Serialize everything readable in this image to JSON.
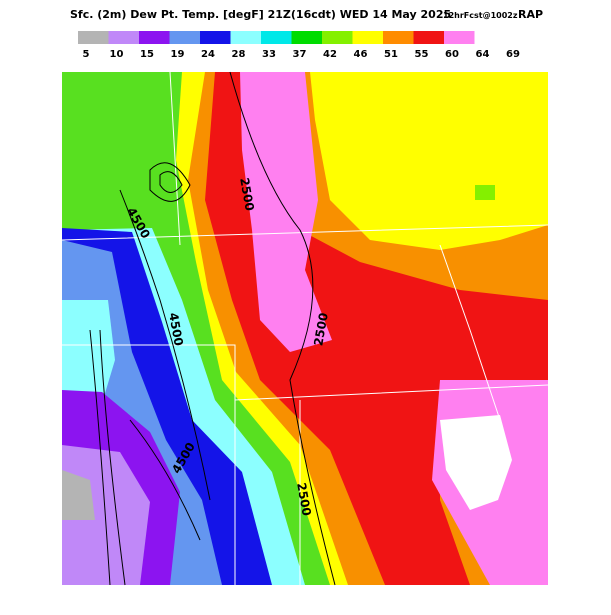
{
  "header": {
    "title": "Sfc. (2m) Dew Pt. Temp. [degF] 21Z(16cdt) WED 14 May 2025",
    "forecast": "12hrFcst@1002z",
    "model": "RAP"
  },
  "legend": {
    "colors": [
      "#b4b4b4",
      "#c088f8",
      "#8c14f0",
      "#6496f0",
      "#1414e8",
      "#8cffff",
      "#00e8e8",
      "#00dc00",
      "#84f000",
      "#ffff00",
      "#ff8c00",
      "#f01414",
      "#ff80f0",
      "#ffffff"
    ],
    "labels": [
      "5",
      "10",
      "15",
      "19",
      "24",
      "28",
      "33",
      "37",
      "42",
      "46",
      "51",
      "55",
      "60",
      "64",
      "69"
    ]
  },
  "contour_labels": [
    "4500",
    "4500",
    "4500",
    "2500",
    "2500",
    "2500"
  ]
}
